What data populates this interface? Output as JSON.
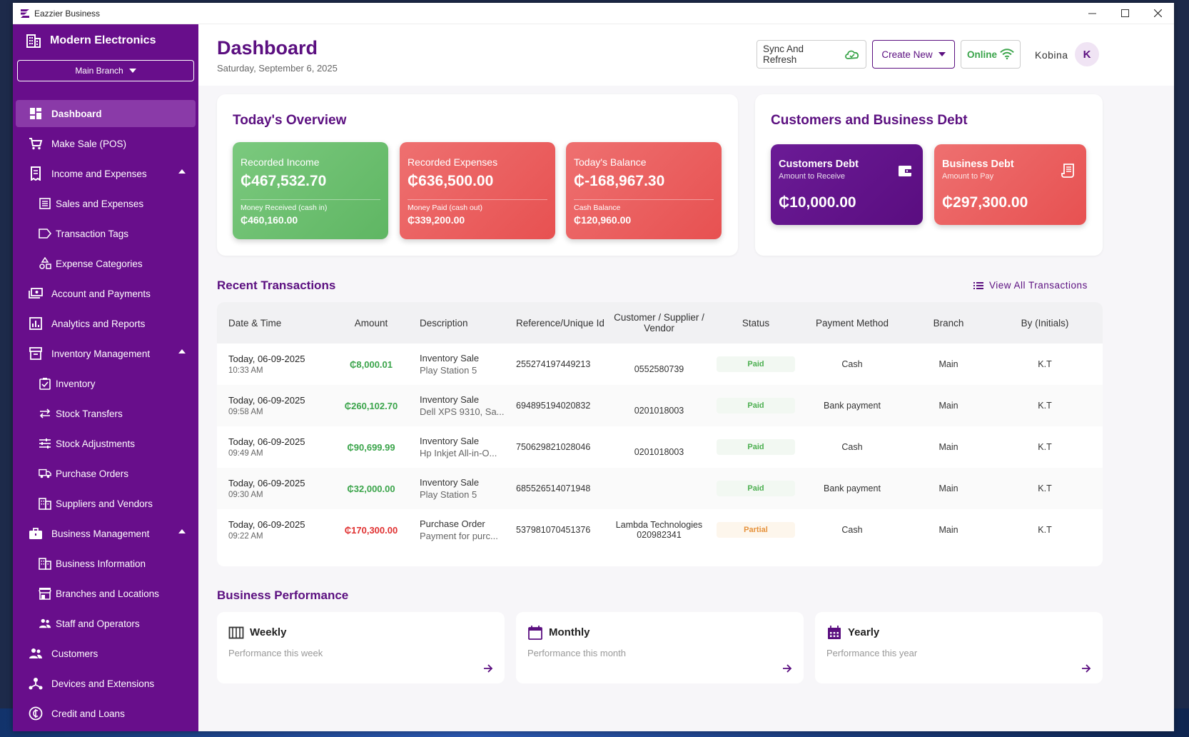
{
  "window": {
    "title": "Eazzier Business"
  },
  "sidebar": {
    "business_name": "Modern Electronics",
    "branch_select": "Main Branch",
    "items": [
      {
        "label": "Dashboard",
        "icon": "dashboard-icon",
        "active": true
      },
      {
        "label": "Make Sale (POS)",
        "icon": "cart-icon"
      },
      {
        "label": "Income and Expenses",
        "icon": "receipt-icon"
      },
      {
        "label": "Sales and Expenses",
        "icon": "list-icon"
      },
      {
        "label": "Transaction Tags",
        "icon": "tag-icon"
      },
      {
        "label": "Expense Categories",
        "icon": "category-icon"
      },
      {
        "label": "Account and Payments",
        "icon": "payments-icon"
      },
      {
        "label": "Analytics and Reports",
        "icon": "analytics-icon"
      },
      {
        "label": "Inventory Management",
        "icon": "inventory-icon"
      },
      {
        "label": "Inventory",
        "icon": "clipboard-icon"
      },
      {
        "label": "Stock Transfers",
        "icon": "transfer-icon"
      },
      {
        "label": "Stock Adjustments",
        "icon": "tune-icon"
      },
      {
        "label": "Purchase Orders",
        "icon": "truck-icon"
      },
      {
        "label": "Suppliers and Vendors",
        "icon": "building-icon"
      },
      {
        "label": "Business Management",
        "icon": "briefcase-icon"
      },
      {
        "label": "Business Information",
        "icon": "building-icon"
      },
      {
        "label": "Branches and Locations",
        "icon": "store-icon"
      },
      {
        "label": "Staff and Operators",
        "icon": "people-icon"
      },
      {
        "label": "Customers",
        "icon": "people-icon"
      },
      {
        "label": "Devices and Extensions",
        "icon": "hub-icon"
      },
      {
        "label": "Credit and Loans",
        "icon": "currency-icon"
      }
    ]
  },
  "header": {
    "title": "Dashboard",
    "date": "Saturday, September 6, 2025",
    "sync_label": "Sync And Refresh",
    "create_label": "Create New",
    "online_label": "Online",
    "user_name": "Kobina",
    "avatar_initial": "K"
  },
  "overview": {
    "title": "Today's Overview",
    "income": {
      "label": "Recorded Income",
      "value": "₵467,532.70",
      "sub_label": "Money Received (cash in)",
      "sub_value": "₵460,160.00"
    },
    "expenses": {
      "label": "Recorded Expenses",
      "value": "₵636,500.00",
      "sub_label": "Money Paid (cash out)",
      "sub_value": "₵339,200.00"
    },
    "balance": {
      "label": "Today's Balance",
      "value": "₵-168,967.30",
      "sub_label": "Cash Balance",
      "sub_value": "₵120,960.00"
    }
  },
  "debt": {
    "title": "Customers and Business Debt",
    "customers": {
      "label": "Customers Debt",
      "sub": "Amount to Receive",
      "value": "₵10,000.00"
    },
    "business": {
      "label": "Business Debt",
      "sub": "Amount to Pay",
      "value": "₵297,300.00"
    }
  },
  "transactions": {
    "title": "Recent Transactions",
    "view_all": "View All Transactions",
    "columns": [
      "Date & Time",
      "Amount",
      "Description",
      "Reference/Unique Id",
      "Customer / Supplier / Vendor",
      "Status",
      "Payment Method",
      "Branch",
      "By (Initials)"
    ],
    "rows": [
      {
        "date": "Today, 06-09-2025",
        "time": "10:33 AM",
        "amount": "₵8,000.01",
        "amount_color": "#3aa44a",
        "desc": "Inventory Sale",
        "desc_sub": "Play Station 5",
        "ref": "255274197449213",
        "party": "",
        "party2": "0552580739",
        "status": "Paid",
        "method": "Cash",
        "branch": "Main",
        "by": "K.T"
      },
      {
        "date": "Today, 06-09-2025",
        "time": "09:58 AM",
        "amount": "₵260,102.70",
        "amount_color": "#3aa44a",
        "desc": "Inventory Sale",
        "desc_sub": "Dell XPS 9310, Sa...",
        "ref": "694895194020832",
        "party": "",
        "party2": "0201018003",
        "status": "Paid",
        "method": "Bank payment",
        "branch": "Main",
        "by": "K.T"
      },
      {
        "date": "Today, 06-09-2025",
        "time": "09:49 AM",
        "amount": "₵90,699.99",
        "amount_color": "#3aa44a",
        "desc": "Inventory Sale",
        "desc_sub": "Hp Inkjet All-in-O...",
        "ref": "750629821028046",
        "party": "",
        "party2": "0201018003",
        "status": "Paid",
        "method": "Cash",
        "branch": "Main",
        "by": "K.T"
      },
      {
        "date": "Today, 06-09-2025",
        "time": "09:30 AM",
        "amount": "₵32,000.00",
        "amount_color": "#3aa44a",
        "desc": "Inventory Sale",
        "desc_sub": "Play Station 5",
        "ref": "685526514071948",
        "party": "",
        "party2": "",
        "status": "Paid",
        "method": "Bank payment",
        "branch": "Main",
        "by": "K.T"
      },
      {
        "date": "Today, 06-09-2025",
        "time": "09:22 AM",
        "amount": "₵170,300.00",
        "amount_color": "#e03131",
        "desc": "Purchase Order",
        "desc_sub": "Payment for purc...",
        "ref": "537981070451376",
        "party": "Lambda Technologies",
        "party2": "020982341",
        "status": "Partial",
        "method": "Cash",
        "branch": "Main",
        "by": "K.T"
      }
    ]
  },
  "performance": {
    "title": "Business Performance",
    "cards": [
      {
        "title": "Weekly",
        "sub": "Performance this week",
        "icon": "week-icon"
      },
      {
        "title": "Monthly",
        "sub": "Performance this month",
        "icon": "calendar-icon"
      },
      {
        "title": "Yearly",
        "sub": "Performance this year",
        "icon": "calendar-grid-icon"
      }
    ]
  },
  "colors": {
    "primary": "#680e8b",
    "accent": "#5b0f80",
    "green": "#3aa44a",
    "red": "#e75151"
  }
}
